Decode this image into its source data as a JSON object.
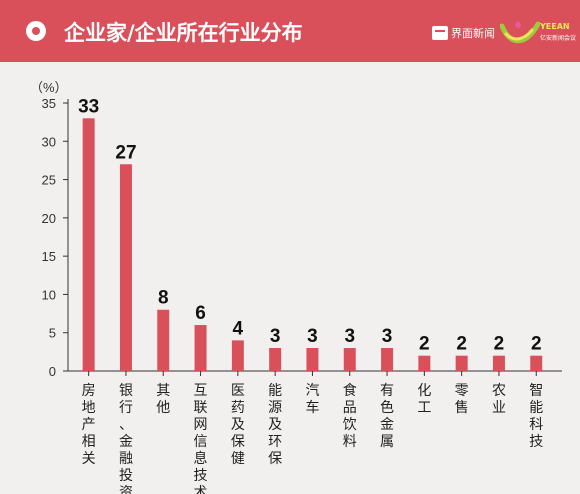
{
  "header": {
    "title": "企业家/企业所在行业分布",
    "logo_jiemian": "界面新闻",
    "logo_yeean": "YEEAN",
    "logo_yeean_sub": "亿安新闻会议"
  },
  "chart_data": {
    "type": "bar",
    "unit_label": "（%）",
    "ylim": [
      0,
      35
    ],
    "yticks": [
      0,
      5,
      10,
      15,
      20,
      25,
      30,
      35
    ],
    "categories": [
      "房地产相关",
      "银行、金融投资",
      "其他",
      "互联网信息技术",
      "医药及保健",
      "能源及环保",
      "汽车",
      "食品饮料",
      "有色金属",
      "化工",
      "零售",
      "农业",
      "智能科技"
    ],
    "values": [
      33,
      27,
      8,
      6,
      4,
      3,
      3,
      3,
      3,
      2,
      2,
      2,
      2
    ],
    "bar_color": "#d9505a",
    "grid": false,
    "legend": "none"
  }
}
